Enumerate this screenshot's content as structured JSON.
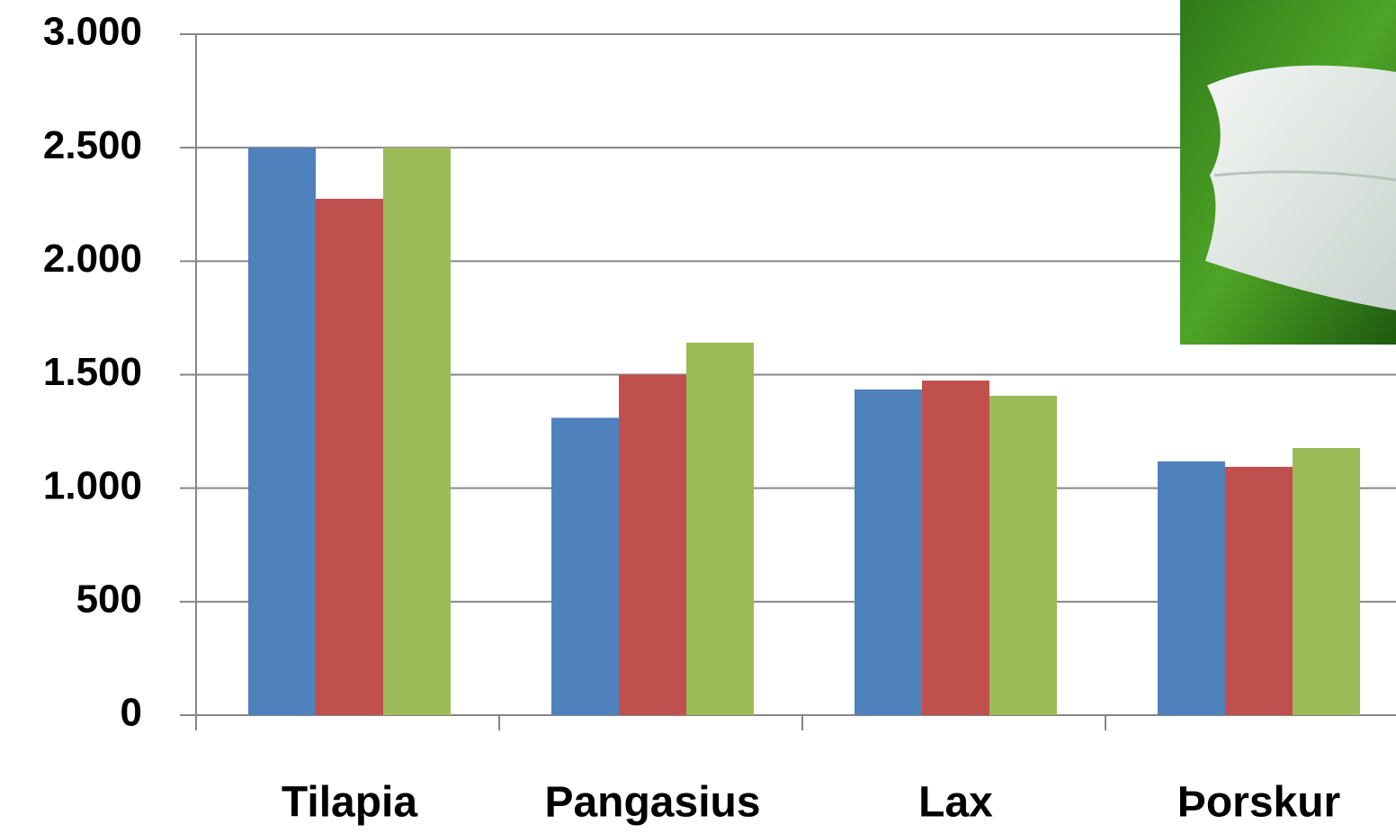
{
  "chart_data": {
    "type": "bar",
    "categories": [
      "Tilapia",
      "Pangasius",
      "Lax",
      "Þorskur"
    ],
    "series": [
      {
        "color": "#4f81bd",
        "values": [
          2500,
          1310,
          1435,
          1118
        ]
      },
      {
        "color": "#c0504d",
        "values": [
          2275,
          1500,
          1474,
          1094
        ]
      },
      {
        "color": "#9bbb59",
        "values": [
          2500,
          1641,
          1407,
          1177
        ]
      }
    ],
    "ylim": [
      0,
      3000
    ],
    "yticks": [
      0,
      500,
      {
        "value": 1000,
        "label": "1.000"
      },
      {
        "value": 1500,
        "label": "1.500"
      },
      {
        "value": 2000,
        "label": "2.000"
      },
      {
        "value": 2500,
        "label": "2.500"
      },
      {
        "value": 3000,
        "label": "3.000"
      }
    ],
    "grid": true
  }
}
